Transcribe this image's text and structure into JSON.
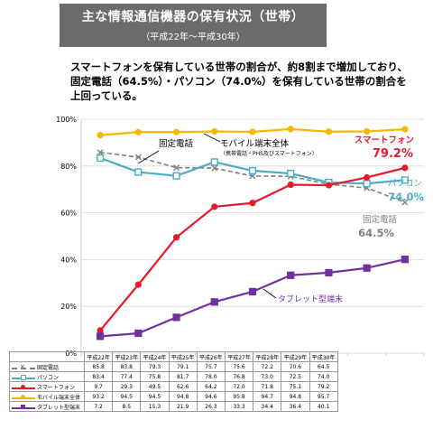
{
  "header": {
    "title": "主な情報通信機器の保有状況（世帯）",
    "subtitle": "（平成22年～平成30年）"
  },
  "description": {
    "line1": "スマートフォンを保有している世帯の割合が、約8割まで増加しており、",
    "line2": "固定電話（64.5%）・パソコン（74.0%）を保有している世帯の割合を",
    "line3": "上回っている。"
  },
  "chart_data": {
    "type": "line",
    "categories": [
      "平成22年",
      "平成23年",
      "平成24年",
      "平成25年",
      "平成26年",
      "平成27年",
      "平成28年",
      "平成29年",
      "平成30年"
    ],
    "ylim": [
      0,
      100
    ],
    "yticks": [
      "0%",
      "20%",
      "40%",
      "60%",
      "80%",
      "100%"
    ],
    "series": [
      {
        "name": "固定電話",
        "color": "#7f7f7f",
        "dashed": true,
        "marker": "x",
        "values": [
          85.8,
          83.8,
          79.3,
          79.1,
          75.7,
          75.6,
          72.2,
          70.6,
          64.5
        ]
      },
      {
        "name": "パソコン",
        "color": "#4bacc6",
        "dashed": false,
        "marker": "square",
        "values": [
          83.4,
          77.4,
          75.8,
          81.7,
          78.0,
          76.8,
          73.0,
          72.5,
          74.0
        ]
      },
      {
        "name": "スマートフォン",
        "color": "#e8192c",
        "dashed": false,
        "marker": "circle",
        "values": [
          9.7,
          29.3,
          49.5,
          62.6,
          64.2,
          72.0,
          71.8,
          75.1,
          79.2
        ]
      },
      {
        "name": "モバイル端末全体",
        "color": "#f5b800",
        "dashed": false,
        "marker": "circle",
        "values": [
          93.2,
          94.5,
          94.5,
          94.8,
          94.6,
          95.8,
          94.7,
          94.8,
          95.7
        ]
      },
      {
        "name": "タブレット型端末",
        "color": "#7030a0",
        "dashed": false,
        "marker": "square",
        "values": [
          7.2,
          8.5,
          15.3,
          21.9,
          26.3,
          33.3,
          34.4,
          36.4,
          40.1
        ]
      }
    ],
    "annotations": {
      "fixed_phone": "固定電話",
      "mobile_all": "モバイル端末全体",
      "mobile_note": "（携帯電話・PHS及びスマートフォン）",
      "smartphone": "スマートフォン",
      "smartphone_value": "79.2%",
      "pc": "パソコン",
      "pc_value": "74.0%",
      "fixed_phone_right": "固定電話",
      "fixed_phone_value": "64.5%",
      "tablet": "タブレット型端末"
    }
  },
  "table": {
    "rows": [
      {
        "label": "固定電話",
        "values": [
          "85.8",
          "83.8",
          "79.3",
          "79.1",
          "75.7",
          "75.6",
          "72.2",
          "70.6",
          "64.5"
        ]
      },
      {
        "label": "パソコン",
        "values": [
          "83.4",
          "77.4",
          "75.8",
          "81.7",
          "78.0",
          "76.8",
          "73.0",
          "72.5",
          "74.0"
        ]
      },
      {
        "label": "スマートフォン",
        "values": [
          "9.7",
          "29.3",
          "49.5",
          "62.6",
          "64.2",
          "72.0",
          "71.8",
          "75.1",
          "79.2"
        ]
      },
      {
        "label": "モバイル端末全体",
        "values": [
          "93.2",
          "94.5",
          "94.5",
          "94.8",
          "94.6",
          "95.8",
          "94.7",
          "94.8",
          "95.7"
        ]
      },
      {
        "label": "タブレット型端末",
        "values": [
          "7.2",
          "8.5",
          "15.3",
          "21.9",
          "26.3",
          "33.3",
          "34.4",
          "36.4",
          "40.1"
        ]
      }
    ]
  }
}
